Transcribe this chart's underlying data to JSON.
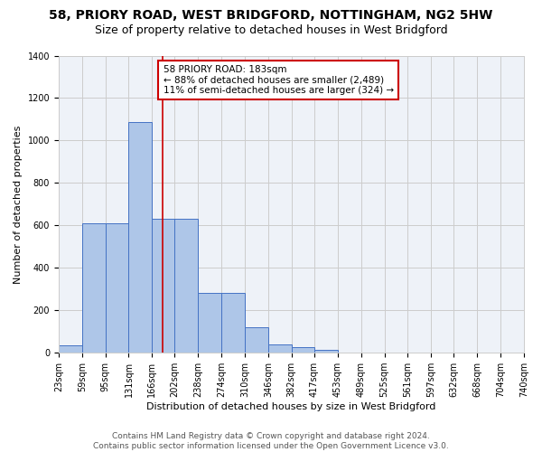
{
  "title_line1": "58, PRIORY ROAD, WEST BRIDGFORD, NOTTINGHAM, NG2 5HW",
  "title_line2": "Size of property relative to detached houses in West Bridgford",
  "xlabel": "Distribution of detached houses by size in West Bridgford",
  "ylabel": "Number of detached properties",
  "footnote": "Contains HM Land Registry data © Crown copyright and database right 2024.\nContains public sector information licensed under the Open Government Licence v3.0.",
  "bar_edges": [
    23,
    59,
    95,
    131,
    166,
    202,
    238,
    274,
    310,
    346,
    382,
    417,
    453,
    489,
    525,
    561,
    597,
    632,
    668,
    704,
    740
  ],
  "bar_heights": [
    35,
    612,
    612,
    1085,
    630,
    630,
    280,
    280,
    120,
    40,
    25,
    15,
    0,
    0,
    0,
    0,
    0,
    0,
    0,
    0
  ],
  "bar_color": "#aec6e8",
  "bar_edge_color": "#4472c4",
  "vline_x": 183,
  "vline_color": "#cc0000",
  "annotation_line1": "58 PRIORY ROAD: 183sqm",
  "annotation_line2": "← 88% of detached houses are smaller (2,489)",
  "annotation_line3": "11% of semi-detached houses are larger (324) →",
  "annotation_box_color": "#cc0000",
  "ylim": [
    0,
    1400
  ],
  "yticks": [
    0,
    200,
    400,
    600,
    800,
    1000,
    1200,
    1400
  ],
  "grid_color": "#cccccc",
  "bg_color": "#eef2f8",
  "title_fontsize": 10,
  "subtitle_fontsize": 9,
  "axis_label_fontsize": 8,
  "tick_fontsize": 7,
  "annotation_fontsize": 7.5,
  "footnote_fontsize": 6.5
}
